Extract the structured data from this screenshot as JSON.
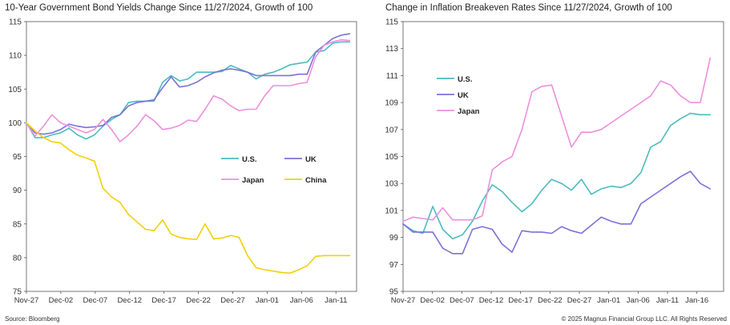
{
  "source": "Source: Bloomberg",
  "copyright": "© 2025 Magnus Financial Group LLC. All Rights Reserved",
  "chart_data": [
    {
      "type": "line",
      "title": "10-Year Government Bond Yields Change Since 11/27/2024, Growth of 100",
      "xlabel": "",
      "ylabel": "",
      "x_tick_labels": [
        "Nov-27",
        "Dec-02",
        "Dec-07",
        "Dec-12",
        "Dec-17",
        "Dec-22",
        "Dec-27",
        "Jan-01",
        "Jan-06",
        "Jan-11"
      ],
      "x_range": [
        0,
        48
      ],
      "ylim": [
        75,
        115
      ],
      "y_ticks": [
        75,
        80,
        85,
        90,
        95,
        100,
        105,
        110,
        115
      ],
      "grid": false,
      "legend_position": "center-right",
      "legend_layout": "two-rows",
      "series": [
        {
          "name": "U.S.",
          "color": "#4bbcc1",
          "values": [
            100,
            97.8,
            97.8,
            98.2,
            98.5,
            99.2,
            98.2,
            97.6,
            98.2,
            99.5,
            100.5,
            101.2,
            103,
            103.2,
            103.2,
            103.2,
            106,
            107,
            106.2,
            106.5,
            107.5,
            107.5,
            107.5,
            107.6,
            108.5,
            108,
            107.5,
            106.5,
            107.2,
            107.5,
            108,
            108.6,
            108.8,
            109,
            110.5,
            110.7,
            111.8,
            112,
            112
          ]
        },
        {
          "name": "UK",
          "color": "#7a72d9",
          "values": [
            100,
            98.5,
            98.3,
            98.5,
            99,
            99.8,
            99.5,
            99.3,
            99.4,
            99.6,
            100.8,
            101.2,
            102.5,
            103,
            103.2,
            103.4,
            105.2,
            106.8,
            105.3,
            105.5,
            106,
            106.8,
            107.4,
            107.8,
            108,
            107.8,
            107.5,
            107,
            107,
            107,
            107,
            107,
            107.2,
            107.2,
            110.5,
            111.5,
            112.5,
            113,
            113.2
          ]
        },
        {
          "name": "Japan",
          "color": "#ee8fdc",
          "values": [
            100,
            98,
            99.5,
            101.2,
            100,
            99.5,
            99,
            98.5,
            99,
            100.5,
            99,
            97.2,
            98.2,
            99.5,
            101.2,
            100.3,
            99,
            99.2,
            99.6,
            100.4,
            100.2,
            102,
            104,
            103.5,
            102.5,
            101.8,
            102,
            102,
            104,
            105.5,
            105.5,
            105.5,
            105.8,
            106,
            109.8,
            111.5,
            112,
            112.3,
            112.2
          ]
        },
        {
          "name": "China",
          "color": "#f2d00b",
          "values": [
            100,
            98.8,
            97.8,
            97.2,
            97,
            96,
            95.2,
            94.8,
            94.3,
            90.3,
            89,
            88.2,
            86.4,
            85.3,
            84.2,
            84,
            85.6,
            83.5,
            83,
            82.8,
            82.7,
            85,
            82.8,
            82.9,
            83.3,
            83,
            80.3,
            78.5,
            78.2,
            78,
            77.8,
            77.7,
            78.2,
            78.8,
            80.2,
            80.3,
            80.3,
            80.3,
            80.3
          ]
        }
      ]
    },
    {
      "type": "line",
      "title": "Change in Inflation Breakeven Rates Since 11/27/2024, Growth of 100",
      "xlabel": "",
      "ylabel": "",
      "x_tick_labels": [
        "Nov-27",
        "Dec-02",
        "Dec-07",
        "Dec-12",
        "Dec-17",
        "Dec-22",
        "Dec-27",
        "Jan-01",
        "Jan-06",
        "Jan-11",
        "Jan-16"
      ],
      "x_range": [
        0,
        48
      ],
      "ylim": [
        95,
        115
      ],
      "y_ticks": [
        95,
        97,
        99,
        101,
        103,
        105,
        107,
        109,
        111,
        113,
        115
      ],
      "grid": false,
      "legend_position": "top-left",
      "legend_layout": "stacked",
      "series": [
        {
          "name": "U.S.",
          "color": "#4bbcc1",
          "values": [
            100,
            99.5,
            99.3,
            101.3,
            99.6,
            98.9,
            99.2,
            100.2,
            101.7,
            102.9,
            102.4,
            101.6,
            100.9,
            101.5,
            102.5,
            103.3,
            103,
            102.5,
            103.3,
            102.2,
            102.6,
            102.8,
            102.7,
            103,
            103.8,
            105.7,
            106.1,
            107.3,
            107.8,
            108.2,
            108.1,
            108.1
          ]
        },
        {
          "name": "UK",
          "color": "#7a72d9",
          "values": [
            100,
            99.4,
            99.4,
            99.4,
            98.2,
            97.8,
            97.8,
            99.6,
            99.8,
            99.6,
            98.5,
            97.9,
            99.5,
            99.4,
            99.4,
            99.3,
            99.8,
            99.5,
            99.3,
            99.9,
            100.5,
            100.2,
            100,
            100,
            101.5,
            102,
            102.5,
            103,
            103.5,
            103.9,
            103,
            102.6
          ]
        },
        {
          "name": "Japan",
          "color": "#ee8fdc",
          "values": [
            100.2,
            100.5,
            100.4,
            100.3,
            101.2,
            100.3,
            100.3,
            100.3,
            100.6,
            104,
            104.6,
            105,
            107,
            109.8,
            110.2,
            110.3,
            108,
            105.7,
            106.8,
            106.8,
            107,
            107.5,
            108,
            108.5,
            109,
            109.5,
            110.6,
            110.3,
            109.5,
            109,
            109,
            112.3
          ]
        }
      ]
    }
  ]
}
